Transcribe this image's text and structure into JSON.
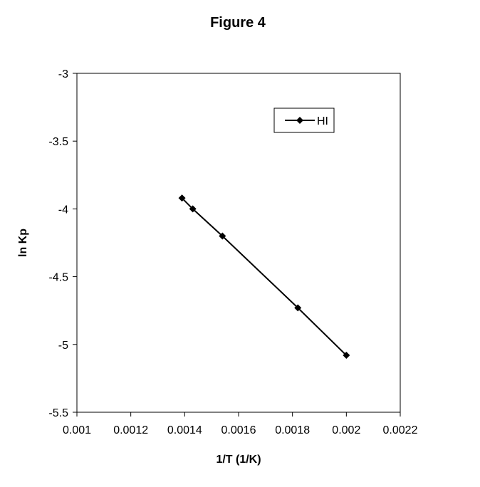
{
  "chart_data": {
    "type": "line",
    "title": "Figure 4",
    "xlabel": "1/T (1/K)",
    "ylabel": "ln Kp",
    "xlim": [
      0.001,
      0.0022
    ],
    "ylim": [
      -5.5,
      -3
    ],
    "x_ticks": [
      "0.001",
      "0.0012",
      "0.0014",
      "0.0016",
      "0.0018",
      "0.002",
      "0.0022"
    ],
    "y_ticks": [
      "-3",
      "-3.5",
      "-4",
      "-4.5",
      "-5",
      "-5.5"
    ],
    "grid": false,
    "legend_position": "top-right",
    "series": [
      {
        "name": "HI",
        "color": "#000000",
        "marker": "diamond",
        "x": [
          0.00139,
          0.00143,
          0.00154,
          0.00182,
          0.002
        ],
        "y": [
          -3.92,
          -4.0,
          -4.2,
          -4.73,
          -5.08
        ]
      }
    ]
  }
}
